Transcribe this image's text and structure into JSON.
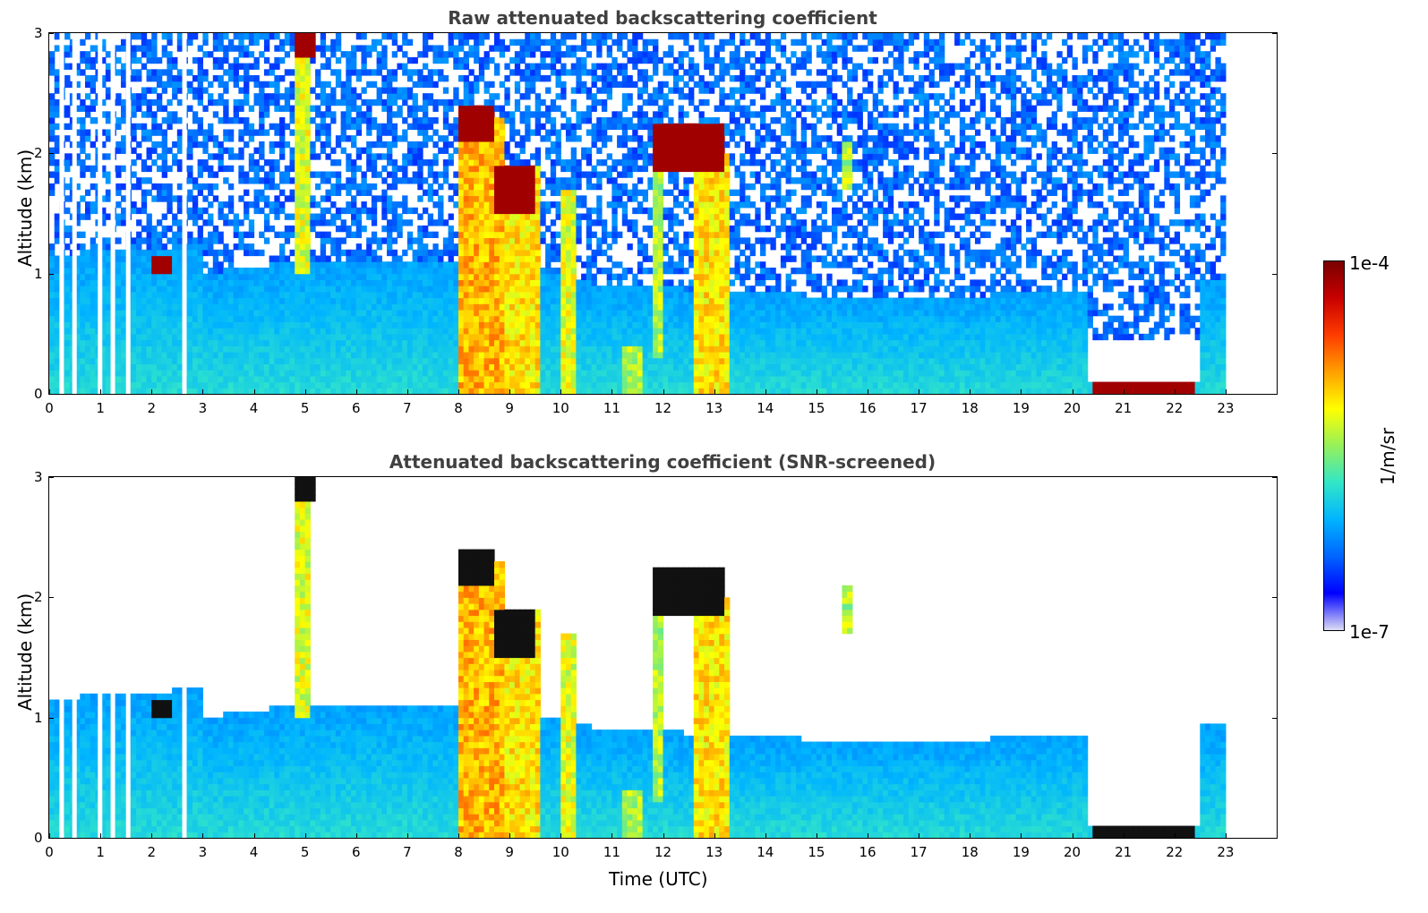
{
  "chart_data": [
    {
      "type": "heatmap",
      "title": "Raw attenuated backscattering coefficient",
      "xlabel": "",
      "ylabel": "Altitude (km)",
      "xlim": [
        0,
        24
      ],
      "ylim": [
        0,
        3
      ],
      "x_ticks": [
        "0",
        "1",
        "2",
        "3",
        "4",
        "5",
        "6",
        "7",
        "8",
        "9",
        "10",
        "11",
        "12",
        "13",
        "14",
        "15",
        "16",
        "17",
        "18",
        "19",
        "20",
        "21",
        "22",
        "23"
      ],
      "y_ticks": [
        "0",
        "1",
        "2",
        "3"
      ],
      "data_end_time": 23,
      "features": [
        {
          "name": "boundary layer aerosol",
          "t_start": 0,
          "t_end": 23,
          "alt_top": 1.0
        },
        {
          "name": "cloud layer",
          "t_start": 8.0,
          "t_end": 8.7,
          "alt_base": 2.1,
          "alt_top": 2.4
        },
        {
          "name": "cloud layer",
          "t_start": 8.7,
          "t_end": 9.5,
          "alt_base": 1.5,
          "alt_top": 1.9
        },
        {
          "name": "cloud layer",
          "t_start": 11.8,
          "t_end": 13.2,
          "alt_base": 1.85,
          "alt_top": 2.25
        },
        {
          "name": "cloud layer",
          "t_start": 2.0,
          "t_end": 2.4,
          "alt_base": 1.0,
          "alt_top": 1.15
        },
        {
          "name": "cloud layer",
          "t_start": 4.8,
          "t_end": 5.2,
          "alt_base": 2.8,
          "alt_top": 3.0
        },
        {
          "name": "low cloud / fog",
          "t_start": 20.4,
          "t_end": 22.4,
          "alt_base": 0.0,
          "alt_top": 0.1
        }
      ]
    },
    {
      "type": "heatmap",
      "title": "Attenuated backscattering coefficient (SNR-screened)",
      "xlabel": "Time (UTC)",
      "ylabel": "Altitude (km)",
      "xlim": [
        0,
        24
      ],
      "ylim": [
        0,
        3
      ],
      "x_ticks": [
        "0",
        "1",
        "2",
        "3",
        "4",
        "5",
        "6",
        "7",
        "8",
        "9",
        "10",
        "11",
        "12",
        "13",
        "14",
        "15",
        "16",
        "17",
        "18",
        "19",
        "20",
        "21",
        "22",
        "23"
      ],
      "y_ticks": [
        "0",
        "1",
        "2",
        "3"
      ],
      "data_end_time": 23
    }
  ],
  "colorbar": {
    "label": "1/m/sr",
    "max_label": "1e-4",
    "min_label": "1e-7",
    "colormap": [
      "#dcdcf5",
      "#0000ff",
      "#0064ff",
      "#00b4ff",
      "#32e6c8",
      "#96f05a",
      "#ffff00",
      "#ffa000",
      "#ff3c00",
      "#c80000",
      "#7a0000"
    ]
  }
}
